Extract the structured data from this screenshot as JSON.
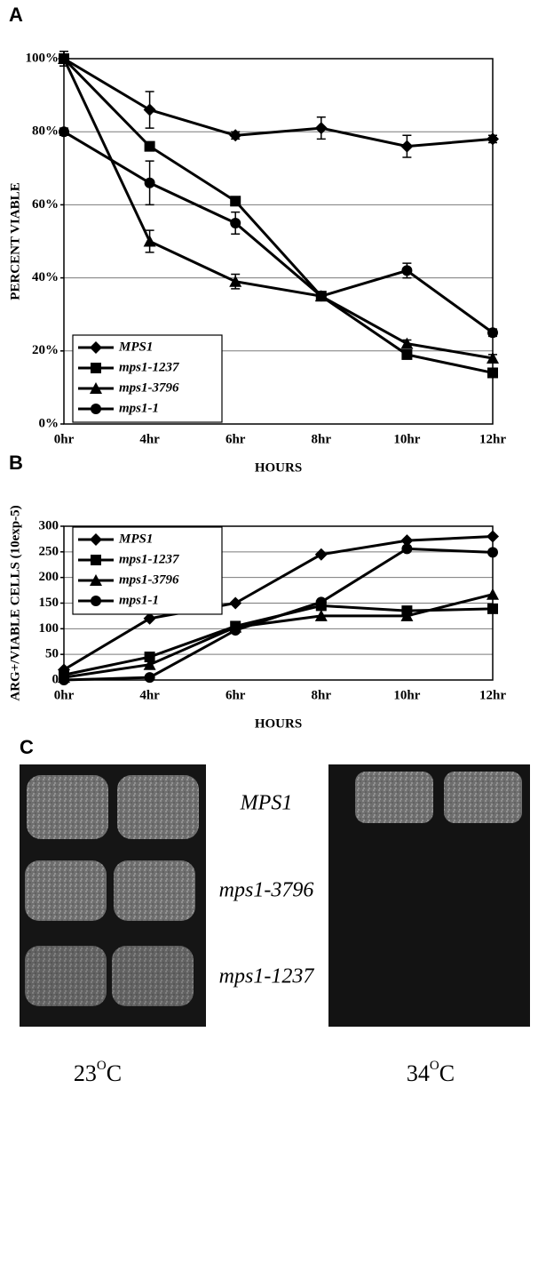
{
  "chart_data": [
    {
      "type": "line",
      "label": "A",
      "ylabel": "PERCENT VIABLE",
      "xlabel": "HOURS",
      "categories": [
        "0hr",
        "4hr",
        "6hr",
        "8hr",
        "10hr",
        "12hr"
      ],
      "ylim": [
        0,
        100
      ],
      "yticks": [
        {
          "value": 0,
          "label": "0%"
        },
        {
          "value": 20,
          "label": "20%"
        },
        {
          "value": 40,
          "label": "40%"
        },
        {
          "value": 60,
          "label": "60%"
        },
        {
          "value": 80,
          "label": "80%"
        },
        {
          "value": 100,
          "label": "100%"
        }
      ],
      "grid": true,
      "legend": "lower left",
      "series": [
        {
          "name": "MPS1",
          "color": "#000000",
          "marker": "diamond",
          "values": [
            100,
            86,
            79,
            81,
            76,
            78
          ],
          "errors": [
            2,
            5,
            1,
            3,
            3,
            1
          ]
        },
        {
          "name": "mps1-1237",
          "color": "#000000",
          "marker": "square",
          "values": [
            100,
            76,
            61,
            35,
            19,
            14
          ],
          "errors": [
            2,
            1,
            1,
            1,
            1,
            1
          ]
        },
        {
          "name": "mps1-3796",
          "color": "#000000",
          "marker": "triangle",
          "values": [
            100,
            50,
            39,
            35,
            22,
            18
          ],
          "errors": [
            2,
            3,
            2,
            1,
            1,
            1
          ]
        },
        {
          "name": "mps1-1",
          "color": "#000000",
          "marker": "circle",
          "values": [
            80,
            66,
            55,
            35,
            42,
            25
          ],
          "errors": [
            1,
            6,
            3,
            1,
            2,
            1
          ]
        }
      ]
    },
    {
      "type": "line",
      "label": "B",
      "ylabel": "ARG+/VIABLE CELLS (10exp-5)",
      "xlabel": "HOURS",
      "categories": [
        "0hr",
        "4hr",
        "6hr",
        "8hr",
        "10hr",
        "12hr"
      ],
      "ylim": [
        0,
        300
      ],
      "yticks": [
        0,
        50,
        100,
        150,
        200,
        250,
        300
      ],
      "grid": true,
      "legend": "upper left",
      "series": [
        {
          "name": "MPS1",
          "color": "#000000",
          "marker": "diamond",
          "values": [
            20,
            120,
            150,
            245,
            272,
            280
          ]
        },
        {
          "name": "mps1-1237",
          "color": "#000000",
          "marker": "square",
          "values": [
            10,
            45,
            105,
            145,
            135,
            139
          ]
        },
        {
          "name": "mps1-3796",
          "color": "#000000",
          "marker": "triangle",
          "values": [
            5,
            30,
            103,
            125,
            125,
            167
          ]
        },
        {
          "name": "mps1-1",
          "color": "#000000",
          "marker": "circle",
          "values": [
            0,
            5,
            97,
            152,
            256,
            249
          ]
        }
      ]
    }
  ],
  "plate": {
    "label": "C",
    "strains": [
      "MPS1",
      "mps1-3796",
      "mps1-1237"
    ],
    "temperatures": [
      {
        "number": "23",
        "superscript": "O",
        "unit": "C"
      },
      {
        "number": "34",
        "superscript": "O",
        "unit": "C"
      }
    ]
  }
}
